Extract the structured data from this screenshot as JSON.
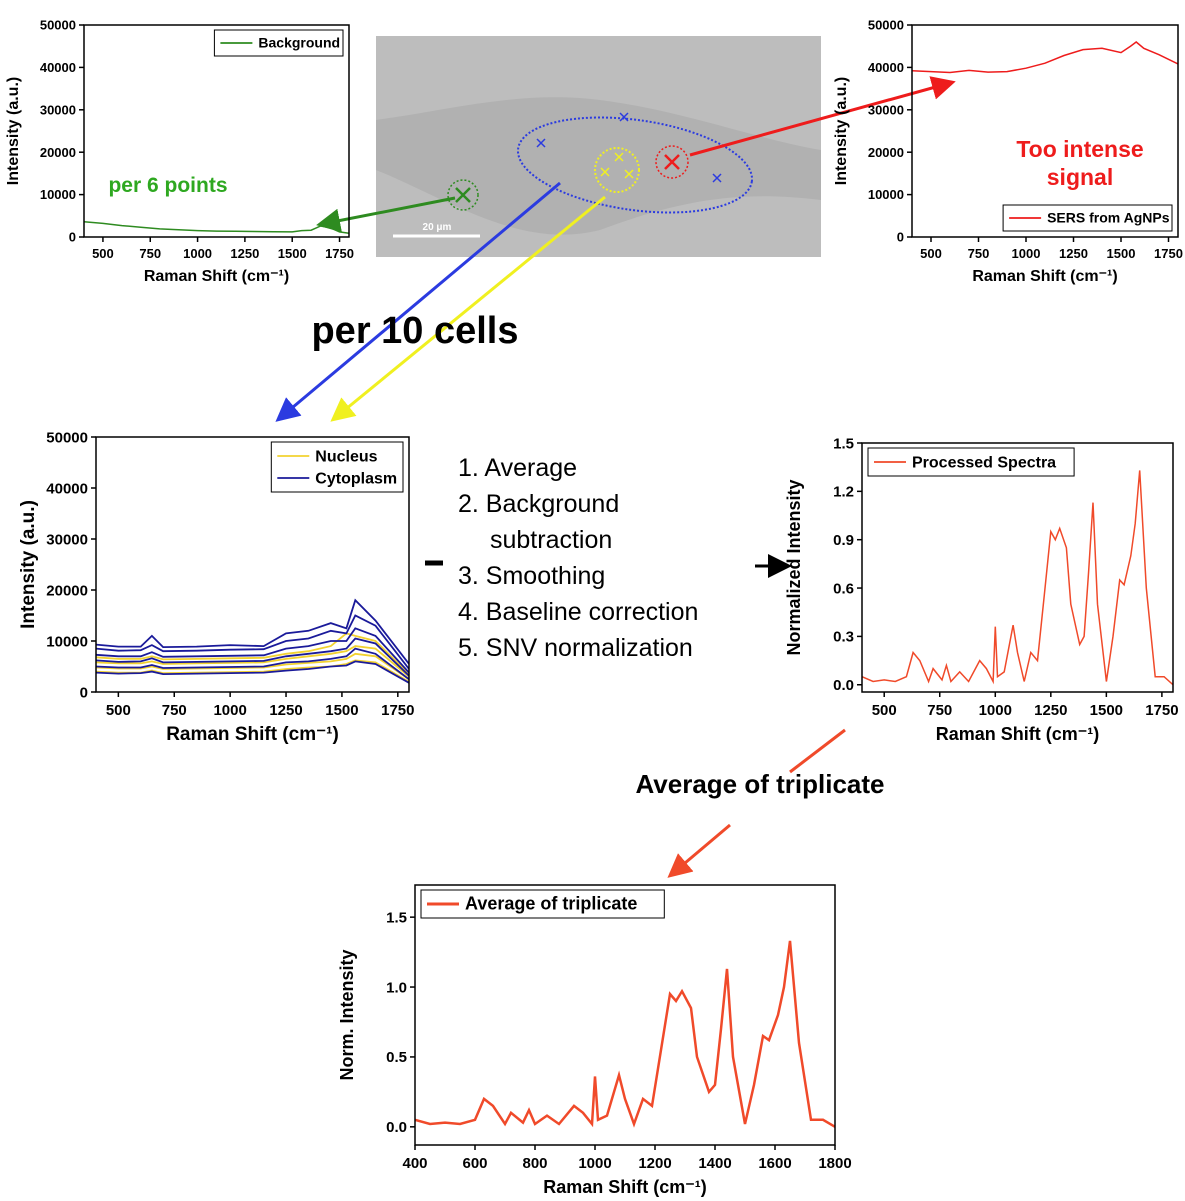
{
  "chart_data": [
    {
      "type": "line",
      "xlabel": "Raman Shift (cm⁻¹)",
      "ylabel": "Intensity (a.u.)",
      "xlim": [
        400,
        1800
      ],
      "xticks": [
        500,
        750,
        1000,
        1250,
        1500,
        1750
      ],
      "ylim": [
        0,
        50000
      ],
      "yticks": [
        0,
        10000,
        20000,
        30000,
        40000,
        50000
      ],
      "legend": "upper right",
      "x": [
        400,
        500,
        600,
        700,
        800,
        900,
        1000,
        1100,
        1200,
        1300,
        1400,
        1500,
        1550,
        1600,
        1650,
        1700,
        1750,
        1800
      ],
      "series": [
        {
          "name": "Background",
          "color": "#2e8b20",
          "values": [
            3600,
            3200,
            2700,
            2300,
            1900,
            1700,
            1500,
            1400,
            1350,
            1300,
            1250,
            1200,
            1500,
            1600,
            2600,
            2200,
            1200,
            900
          ]
        }
      ]
    },
    {
      "type": "line",
      "xlabel": "Raman Shift (cm⁻¹)",
      "ylabel": "Intensity (a.u.)",
      "xlim": [
        400,
        1800
      ],
      "xticks": [
        500,
        750,
        1000,
        1250,
        1500,
        1750
      ],
      "ylim": [
        0,
        50000
      ],
      "yticks": [
        0,
        10000,
        20000,
        30000,
        40000,
        50000
      ],
      "legend": "lower right",
      "x": [
        400,
        500,
        600,
        700,
        800,
        900,
        1000,
        1100,
        1200,
        1300,
        1400,
        1500,
        1550,
        1580,
        1620,
        1700,
        1800
      ],
      "series": [
        {
          "name": "SERS from AgNPs",
          "color": "#ee1c1c",
          "values": [
            39200,
            39000,
            38800,
            39300,
            38900,
            39000,
            39800,
            41000,
            42800,
            44200,
            44500,
            43500,
            45000,
            46000,
            44500,
            43000,
            40800
          ]
        }
      ]
    },
    {
      "type": "multiline",
      "xlabel": "Raman Shift (cm⁻¹)",
      "ylabel": "Intensity (a.u.)",
      "xlim": [
        400,
        1800
      ],
      "xticks": [
        500,
        750,
        1000,
        1250,
        1500,
        1750
      ],
      "ylim": [
        0,
        50000
      ],
      "yticks": [
        0,
        10000,
        20000,
        30000,
        40000,
        50000
      ],
      "legend": "upper right",
      "x": [
        400,
        500,
        600,
        650,
        700,
        850,
        1000,
        1150,
        1250,
        1350,
        1450,
        1520,
        1560,
        1650,
        1800
      ],
      "series": [
        {
          "name": "Nucleus",
          "color": "#f2d230",
          "values": [
            [
              6800,
              6500,
              6500,
              7000,
              6400,
              6500,
              6600,
              6700,
              7500,
              8000,
              9000,
              11500,
              11000,
              10000,
              3500
            ],
            [
              5800,
              5600,
              5600,
              6000,
              5500,
              5600,
              5700,
              5800,
              6500,
              7000,
              7500,
              8000,
              9000,
              8500,
              3000
            ],
            [
              4800,
              4600,
              4600,
              5000,
              4500,
              4600,
              4700,
              4800,
              5400,
              5700,
              6000,
              6500,
              7500,
              7000,
              2500
            ],
            [
              4000,
              3800,
              3800,
              4200,
              3700,
              3800,
              3900,
              4000,
              4500,
              4800,
              5000,
              5500,
              6200,
              5800,
              2000
            ]
          ]
        },
        {
          "name": "Cytoplasm",
          "color": "#1a1a9a",
          "values": [
            [
              9300,
              8900,
              8900,
              11000,
              8800,
              8900,
              9200,
              9000,
              11500,
              12000,
              13500,
              12500,
              18000,
              14000,
              5500
            ],
            [
              8500,
              8100,
              8200,
              9200,
              8000,
              8100,
              8300,
              8400,
              10000,
              10500,
              12000,
              11500,
              15000,
              13000,
              4500
            ],
            [
              7300,
              7000,
              7000,
              7800,
              6900,
              7000,
              7100,
              7200,
              8500,
              9000,
              10000,
              10000,
              12500,
              11000,
              3800
            ],
            [
              6200,
              5900,
              6000,
              6600,
              5800,
              5900,
              6000,
              6100,
              7000,
              7500,
              8000,
              8500,
              10500,
              9500,
              3200
            ],
            [
              5000,
              4800,
              4800,
              5300,
              4700,
              4800,
              4900,
              5000,
              5800,
              6000,
              6500,
              7000,
              8500,
              7500,
              2500
            ],
            [
              3800,
              3600,
              3700,
              4000,
              3500,
              3600,
              3700,
              3800,
              4200,
              4500,
              5000,
              5200,
              6000,
              5500,
              1800
            ]
          ]
        }
      ]
    },
    {
      "type": "line",
      "xlabel": "Raman Shift (cm⁻¹)",
      "ylabel": "Normalized Intensity",
      "xlim": [
        400,
        1800
      ],
      "xticks": [
        500,
        750,
        1000,
        1250,
        1500,
        1750
      ],
      "ylim": [
        -0.045,
        1.5
      ],
      "yticks": [
        {
          "value": 0,
          "label": "0.0"
        },
        0.3,
        0.6,
        0.9,
        1.2,
        1.5
      ],
      "legend": "upper left",
      "x": [
        400,
        450,
        500,
        550,
        600,
        630,
        660,
        700,
        720,
        760,
        780,
        800,
        840,
        880,
        930,
        960,
        990,
        1000,
        1010,
        1040,
        1080,
        1100,
        1130,
        1160,
        1190,
        1220,
        1250,
        1270,
        1290,
        1320,
        1340,
        1380,
        1400,
        1420,
        1440,
        1460,
        1500,
        1530,
        1560,
        1580,
        1610,
        1630,
        1650,
        1680,
        1720,
        1760,
        1800
      ],
      "series": [
        {
          "name": "Processed Spectra",
          "color": "#f04a2a",
          "values": [
            0.05,
            0.02,
            0.03,
            0.02,
            0.05,
            0.2,
            0.15,
            0.02,
            0.1,
            0.03,
            0.12,
            0.02,
            0.08,
            0.02,
            0.15,
            0.1,
            0.02,
            0.36,
            0.05,
            0.08,
            0.37,
            0.2,
            0.02,
            0.2,
            0.15,
            0.55,
            0.95,
            0.9,
            0.97,
            0.85,
            0.5,
            0.25,
            0.3,
            0.7,
            1.13,
            0.5,
            0.02,
            0.3,
            0.65,
            0.62,
            0.8,
            1.0,
            1.33,
            0.6,
            0.05,
            0.05,
            0.0
          ]
        }
      ]
    },
    {
      "type": "line",
      "xlabel": "Raman Shift (cm⁻¹)",
      "ylabel": "Norm. Intensity",
      "xlim": [
        400,
        1800
      ],
      "xticks": [
        400,
        600,
        800,
        1000,
        1200,
        1400,
        1600,
        1800
      ],
      "ylim": [
        -0.13,
        1.73
      ],
      "yticks": [
        {
          "value": 0,
          "label": "0.0"
        },
        0.5,
        {
          "value": 1,
          "label": "1.0"
        },
        1.5
      ],
      "legend": "upper left",
      "x": [
        400,
        450,
        500,
        550,
        600,
        630,
        660,
        700,
        720,
        760,
        780,
        800,
        840,
        880,
        930,
        960,
        990,
        1000,
        1010,
        1040,
        1080,
        1100,
        1130,
        1160,
        1190,
        1220,
        1250,
        1270,
        1290,
        1320,
        1340,
        1380,
        1400,
        1420,
        1440,
        1460,
        1500,
        1530,
        1560,
        1580,
        1610,
        1630,
        1650,
        1680,
        1720,
        1760,
        1800
      ],
      "series": [
        {
          "name": "Average of triplicate",
          "color": "#f04a2a",
          "values": [
            0.05,
            0.02,
            0.03,
            0.02,
            0.05,
            0.2,
            0.15,
            0.02,
            0.1,
            0.03,
            0.12,
            0.02,
            0.08,
            0.02,
            0.15,
            0.1,
            0.02,
            0.36,
            0.05,
            0.08,
            0.37,
            0.2,
            0.02,
            0.2,
            0.15,
            0.55,
            0.95,
            0.9,
            0.97,
            0.85,
            0.5,
            0.25,
            0.3,
            0.7,
            1.13,
            0.5,
            0.02,
            0.3,
            0.65,
            0.62,
            0.8,
            1.0,
            1.33,
            0.6,
            0.05,
            0.05,
            0.0
          ]
        }
      ]
    }
  ],
  "annotations": {
    "points": "per 6 points",
    "signal": "Too intense signal",
    "cells": "per 10 cells",
    "triplicate": "Average of triplicate"
  },
  "steps": [
    "1. Average",
    "2. Background subtraction",
    "3. Smoothing",
    "4. Baseline correction",
    "5. SNV normalization"
  ],
  "image": {
    "scale_bar": "20 μm"
  }
}
